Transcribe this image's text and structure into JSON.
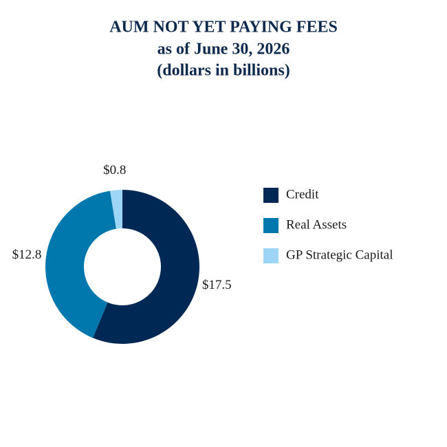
{
  "chart_data": {
    "type": "donut",
    "title": "AUM NOT YET PAYING FEES",
    "subtitle": [
      "as of June 30, 2026",
      "(dollars in billions)"
    ],
    "categories": [
      "Credit",
      "Real Assets",
      "GP Strategic Capital"
    ],
    "values": [
      17.5,
      12.8,
      0.8
    ],
    "value_labels": [
      "$17.5",
      "$12.8",
      "$0.8"
    ],
    "colors": [
      "#002855",
      "#0077ad",
      "#9dd5f7"
    ],
    "legend": "right"
  }
}
